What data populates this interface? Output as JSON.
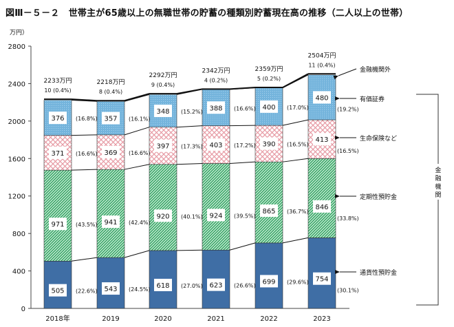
{
  "title": "図Ⅲ－５－２　世帯主が65歳以上の無職世帯の貯蓄の種類別貯蓄現在高の推移（二人以上の世帯）",
  "chart_data": {
    "type": "bar",
    "stacked": true,
    "title": "図Ⅲ－５－２　世帯主が65歳以上の無職世帯の貯蓄の種類別貯蓄現在高の推移（二人以上の世帯）",
    "ylabel": "万円）",
    "xlabel": "",
    "ylim": [
      0,
      2800
    ],
    "yticks": [
      0,
      400,
      800,
      1200,
      1600,
      2000,
      2400,
      2800
    ],
    "grid": false,
    "categories": [
      "2018年",
      "2019",
      "2020",
      "2021",
      "2022",
      "2023"
    ],
    "series": [
      {
        "name": "通貨性預貯金",
        "values": [
          505,
          543,
          618,
          623,
          699,
          754
        ],
        "shares": [
          "(22.6%)",
          "(24.5%)",
          "(27.0%)",
          "(26.6%)",
          "(29.6%)",
          "(30.1%)"
        ],
        "color": "#3f6ea5"
      },
      {
        "name": "定期性預貯金",
        "values": [
          971,
          941,
          920,
          924,
          865,
          846
        ],
        "shares": [
          "(43.5%)",
          "(42.4%)",
          "(40.1%)",
          "(39.5%)",
          "(36.7%)",
          "(33.8%)"
        ],
        "color": "#2e9e5e"
      },
      {
        "name": "生命保険など",
        "values": [
          371,
          369,
          397,
          403,
          390,
          413
        ],
        "shares": [
          "(16.6%)",
          "(16.6%)",
          "(17.3%)",
          "(17.2%)",
          "(16.5%)",
          "(16.5%)"
        ],
        "color": "#e8a0a8"
      },
      {
        "name": "有価証券",
        "values": [
          376,
          357,
          348,
          388,
          400,
          480
        ],
        "shares": [
          "(16.8%)",
          "(16.1%)",
          "(15.2%)",
          "(16.6%)",
          "(17.0%)",
          "(19.2%)"
        ],
        "color": "#7ab8de"
      },
      {
        "name": "金融機関外",
        "values": [
          10,
          8,
          9,
          4,
          5,
          11
        ],
        "shares": [
          "(0.4%)",
          "(0.4%)",
          "(0.4%)",
          "(0.2%)",
          "(0.2%)",
          "(0.4%)"
        ],
        "color": "#ffffff"
      }
    ],
    "totals": [
      2233,
      2218,
      2292,
      2342,
      2359,
      2504
    ],
    "total_labels": [
      "2233万円",
      "2218万円",
      "2292万円",
      "2342万円",
      "2359万円",
      "2504万円"
    ],
    "bracket_label": "金融機関",
    "legend_placement": "right"
  }
}
